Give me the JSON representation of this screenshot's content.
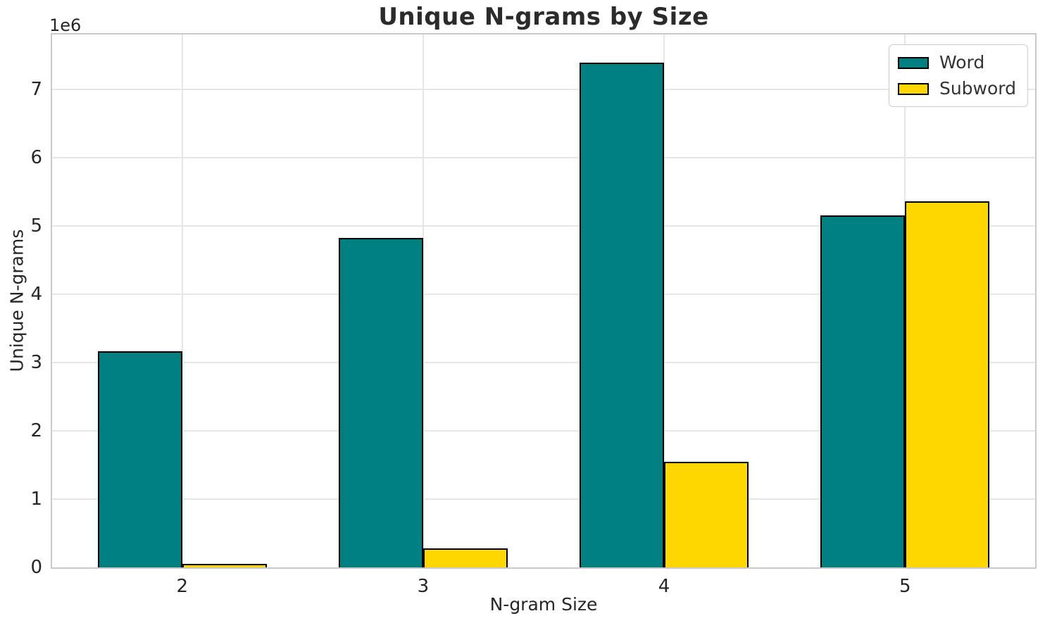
{
  "chart_data": {
    "type": "bar",
    "title": "Unique N-grams by Size",
    "xlabel": "N-gram Size",
    "ylabel": "Unique N-grams",
    "offset_text": "1e6",
    "categories": [
      "2",
      "3",
      "4",
      "5"
    ],
    "x_positions": [
      2,
      3,
      4,
      5
    ],
    "series": [
      {
        "name": "Word",
        "color": "#008080",
        "values": [
          3160000,
          4820000,
          7390000,
          5150000
        ]
      },
      {
        "name": "Subword",
        "color": "#FFD700",
        "values": [
          50000,
          280000,
          1550000,
          5360000
        ]
      }
    ],
    "bar_width": 0.35,
    "bar_edge_color": "#000000",
    "yticks": [
      0,
      1,
      2,
      3,
      4,
      5,
      6,
      7
    ],
    "ytick_unit": 1000000,
    "ylim": [
      0,
      7800000
    ],
    "xlim": [
      1.46,
      5.54
    ],
    "grid": true,
    "grid_color": "#e6e6e6",
    "spine_color": "#c9c9c9",
    "background": "#ffffff",
    "legend_position": "upper right"
  }
}
